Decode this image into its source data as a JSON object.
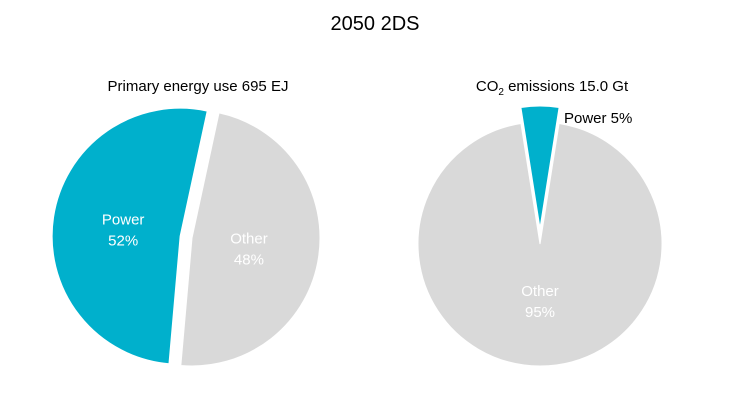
{
  "title": "2050 2DS",
  "colors": {
    "power": "#00B0CC",
    "other": "#D9D9D9",
    "text": "#000000",
    "inner_text": "#FFFFFF"
  },
  "chart_data": [
    {
      "type": "pie",
      "title": "Primary energy use 695 EJ",
      "title_parts": {
        "prefix": "Primary energy use 695 EJ",
        "subscript": "",
        "suffix": ""
      },
      "slices": [
        {
          "name": "Power",
          "value": 52,
          "label": "52%",
          "color": "#00B0CC",
          "exploded": true,
          "label_position": "inside"
        },
        {
          "name": "Other",
          "value": 48,
          "label": "48%",
          "color": "#D9D9D9",
          "exploded": false,
          "label_position": "inside"
        }
      ]
    },
    {
      "type": "pie",
      "title": "CO2 emissions 15.0 Gt",
      "title_parts": {
        "prefix": "CO",
        "subscript": "2",
        "suffix": " emissions 15.0 Gt"
      },
      "slices": [
        {
          "name": "Power",
          "value": 5,
          "label": "5%",
          "color": "#00B0CC",
          "exploded": true,
          "label_position": "outside"
        },
        {
          "name": "Other",
          "value": 95,
          "label": "95%",
          "color": "#D9D9D9",
          "exploded": false,
          "label_position": "inside"
        }
      ]
    }
  ]
}
